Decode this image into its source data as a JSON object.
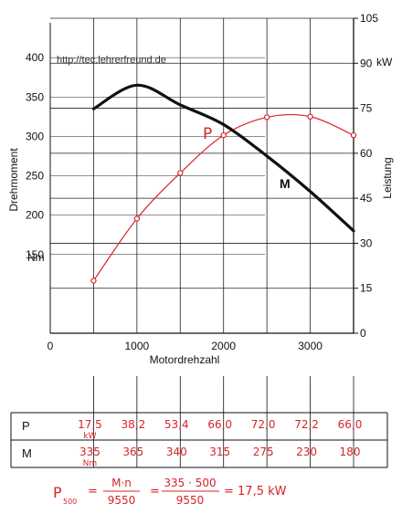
{
  "watermark": "http://tec.lehrerfreund.de",
  "chart_data": {
    "type": "line",
    "x": [
      500,
      1000,
      1500,
      2000,
      2500,
      3000,
      3500
    ],
    "xlabel": "Motordrehzahl",
    "xticks": [
      "0",
      "1000",
      "2000",
      "3000"
    ],
    "xlim": [
      0,
      3500
    ],
    "left_axis": {
      "label": "Drehmoment",
      "unit": "Nm",
      "ticks": [
        "150",
        "200",
        "250",
        "300",
        "350",
        "400"
      ],
      "ylim": [
        50,
        450
      ]
    },
    "right_axis": {
      "label": "Leistung",
      "unit": "kW",
      "ticks": [
        "0",
        "15",
        "30",
        "45",
        "60",
        "75",
        "90",
        "105"
      ],
      "ylim": [
        0,
        105
      ]
    },
    "series": [
      {
        "name": "P",
        "axis": "right",
        "color": "#d8232a",
        "values": [
          17.5,
          38.2,
          53.4,
          66.0,
          72.0,
          72.2,
          66.0
        ],
        "markers": true
      },
      {
        "name": "M",
        "axis": "left",
        "color": "#111111",
        "values": [
          335,
          365,
          340,
          315,
          275,
          230,
          180
        ],
        "markers": false
      }
    ],
    "grid": true
  },
  "table": {
    "rows": [
      {
        "label": "P",
        "values": [
          "17,5",
          "38,2",
          "53,4",
          "66,0",
          "72,0",
          "72,2",
          "66,0"
        ],
        "unit": "kW"
      },
      {
        "label": "M",
        "values": [
          "335",
          "365",
          "340",
          "315",
          "275",
          "230",
          "180"
        ],
        "unit": "Nm"
      }
    ]
  },
  "formula": {
    "lhs": "P",
    "lhs_sub": "500",
    "eq": "=",
    "frac1_num": "M·n",
    "frac1_den": "9550",
    "frac2_num": "335 · 500",
    "frac2_den": "9550",
    "result": "= 17,5 kW"
  },
  "colors": {
    "hand": "#d8232a",
    "ink": "#111111",
    "grid": "#222222"
  }
}
